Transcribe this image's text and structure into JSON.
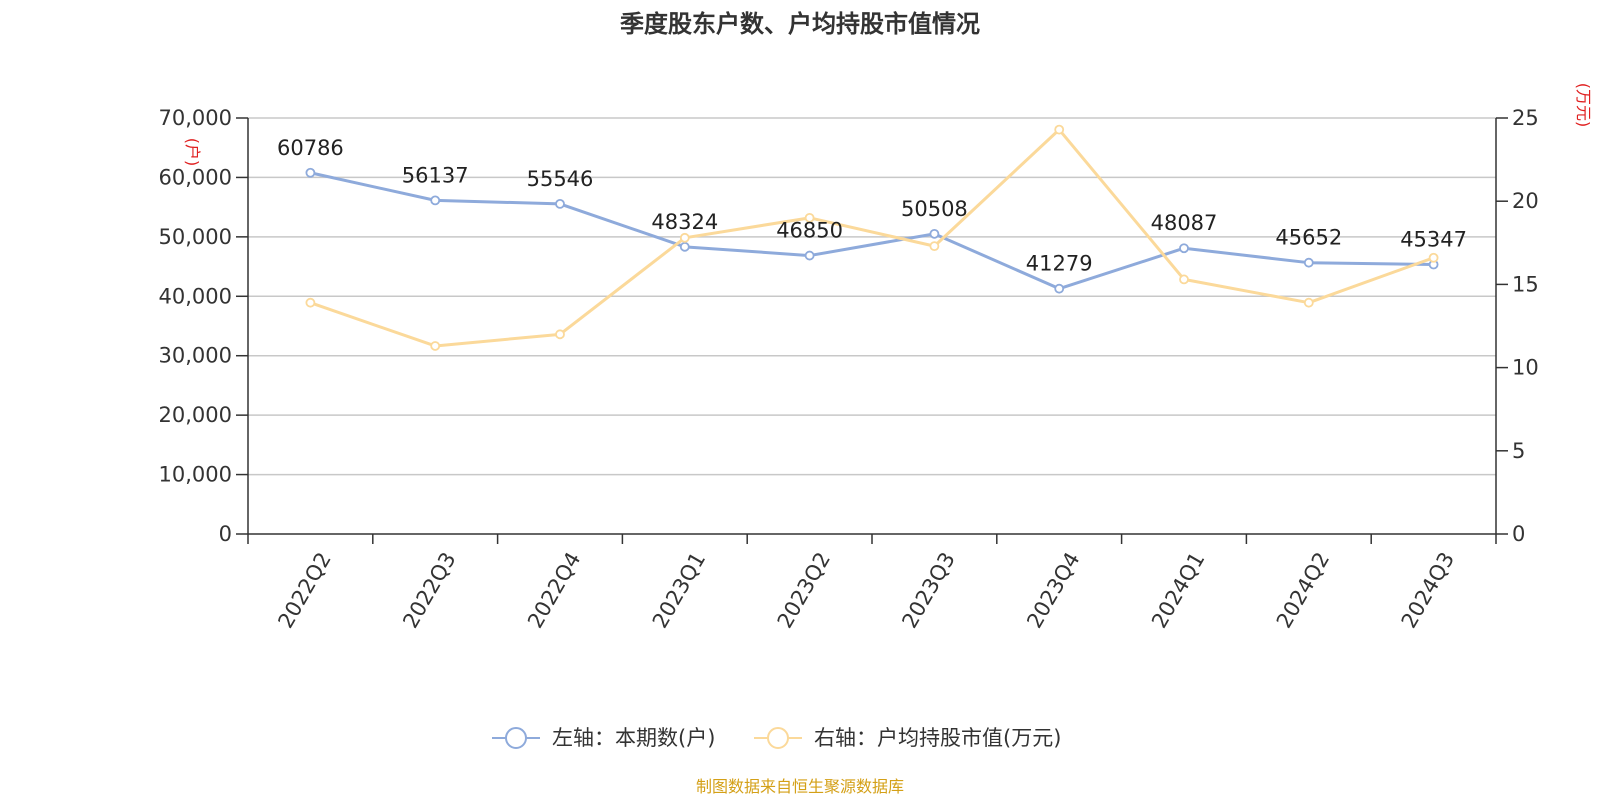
{
  "chart_data": {
    "type": "line",
    "title": "季度股东户数、户均持股市值情况",
    "categories": [
      "2022Q2",
      "2022Q3",
      "2022Q4",
      "2023Q1",
      "2023Q2",
      "2023Q3",
      "2023Q4",
      "2024Q1",
      "2024Q2",
      "2024Q3"
    ],
    "series": [
      {
        "name": "左轴：本期数(户)",
        "axis": "left",
        "color": "#8eaadb",
        "values": [
          60786,
          56137,
          55546,
          48324,
          46850,
          50508,
          41279,
          48087,
          45652,
          45347
        ],
        "data_labels": [
          "60786",
          "56137",
          "55546",
          "48324",
          "46850",
          "50508",
          "41279",
          "48087",
          "45652",
          "45347"
        ]
      },
      {
        "name": "右轴：户均持股市值(万元)",
        "axis": "right",
        "color": "#fbd99a",
        "values": [
          13.9,
          11.3,
          12.0,
          17.8,
          19.0,
          17.3,
          24.3,
          15.3,
          13.9,
          16.6
        ]
      }
    ],
    "left_axis": {
      "unit": "(户)",
      "ylim": [
        0,
        70000
      ],
      "ticks": [
        0,
        10000,
        20000,
        30000,
        40000,
        50000,
        60000,
        70000
      ],
      "tick_labels": [
        "0",
        "10,000",
        "20,000",
        "30,000",
        "40,000",
        "50,000",
        "60,000",
        "70,000"
      ]
    },
    "right_axis": {
      "unit": "(万元)",
      "ylim": [
        0,
        25
      ],
      "ticks": [
        0,
        5,
        10,
        15,
        20,
        25
      ],
      "tick_labels": [
        "0",
        "5",
        "10",
        "15",
        "20",
        "25"
      ]
    },
    "grid": true,
    "legend_position": "bottom",
    "source": "制图数据来自恒生聚源数据库"
  }
}
